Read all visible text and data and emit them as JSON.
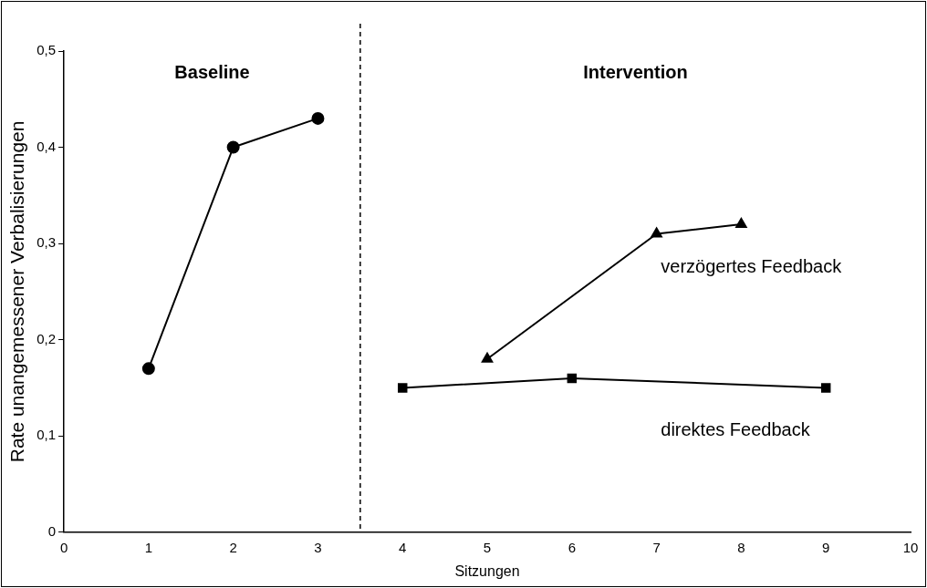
{
  "chart_data": {
    "type": "line",
    "xlabel": "Sitzungen",
    "ylabel": "Rate unangemessener Verbalisierungen",
    "xlim": [
      0,
      10
    ],
    "xticks": [
      0,
      1,
      2,
      3,
      4,
      5,
      6,
      7,
      8,
      9,
      10
    ],
    "ylim": [
      0,
      0.5
    ],
    "yticks": [
      0,
      {
        "value": 0.1,
        "label": "0,1"
      },
      {
        "value": 0.2,
        "label": "0,2"
      },
      {
        "value": 0.3,
        "label": "0,3"
      },
      {
        "value": 0.4,
        "label": "0,4"
      },
      {
        "value": 0.5,
        "label": "0,5"
      }
    ],
    "grid": false,
    "legend": false,
    "series": [
      {
        "color": "#000000",
        "marker": "circle",
        "x": [
          1,
          2,
          3
        ],
        "values": [
          0.17,
          0.4,
          0.43
        ]
      },
      {
        "name": "verzögertes Feedback",
        "color": "#000000",
        "marker": "triangle",
        "x": [
          5,
          7,
          8
        ],
        "values": [
          0.18,
          0.31,
          0.32
        ]
      },
      {
        "name": "direktes Feedback",
        "color": "#000000",
        "marker": "square",
        "x": [
          4,
          6,
          9
        ],
        "values": [
          0.15,
          0.16,
          0.15
        ]
      }
    ],
    "ref_lines": [
      {
        "axis": "x",
        "value": 3.5,
        "color": "#000000",
        "line_style": "dashed"
      }
    ],
    "annotations": [
      "Baseline",
      "Intervention"
    ]
  }
}
